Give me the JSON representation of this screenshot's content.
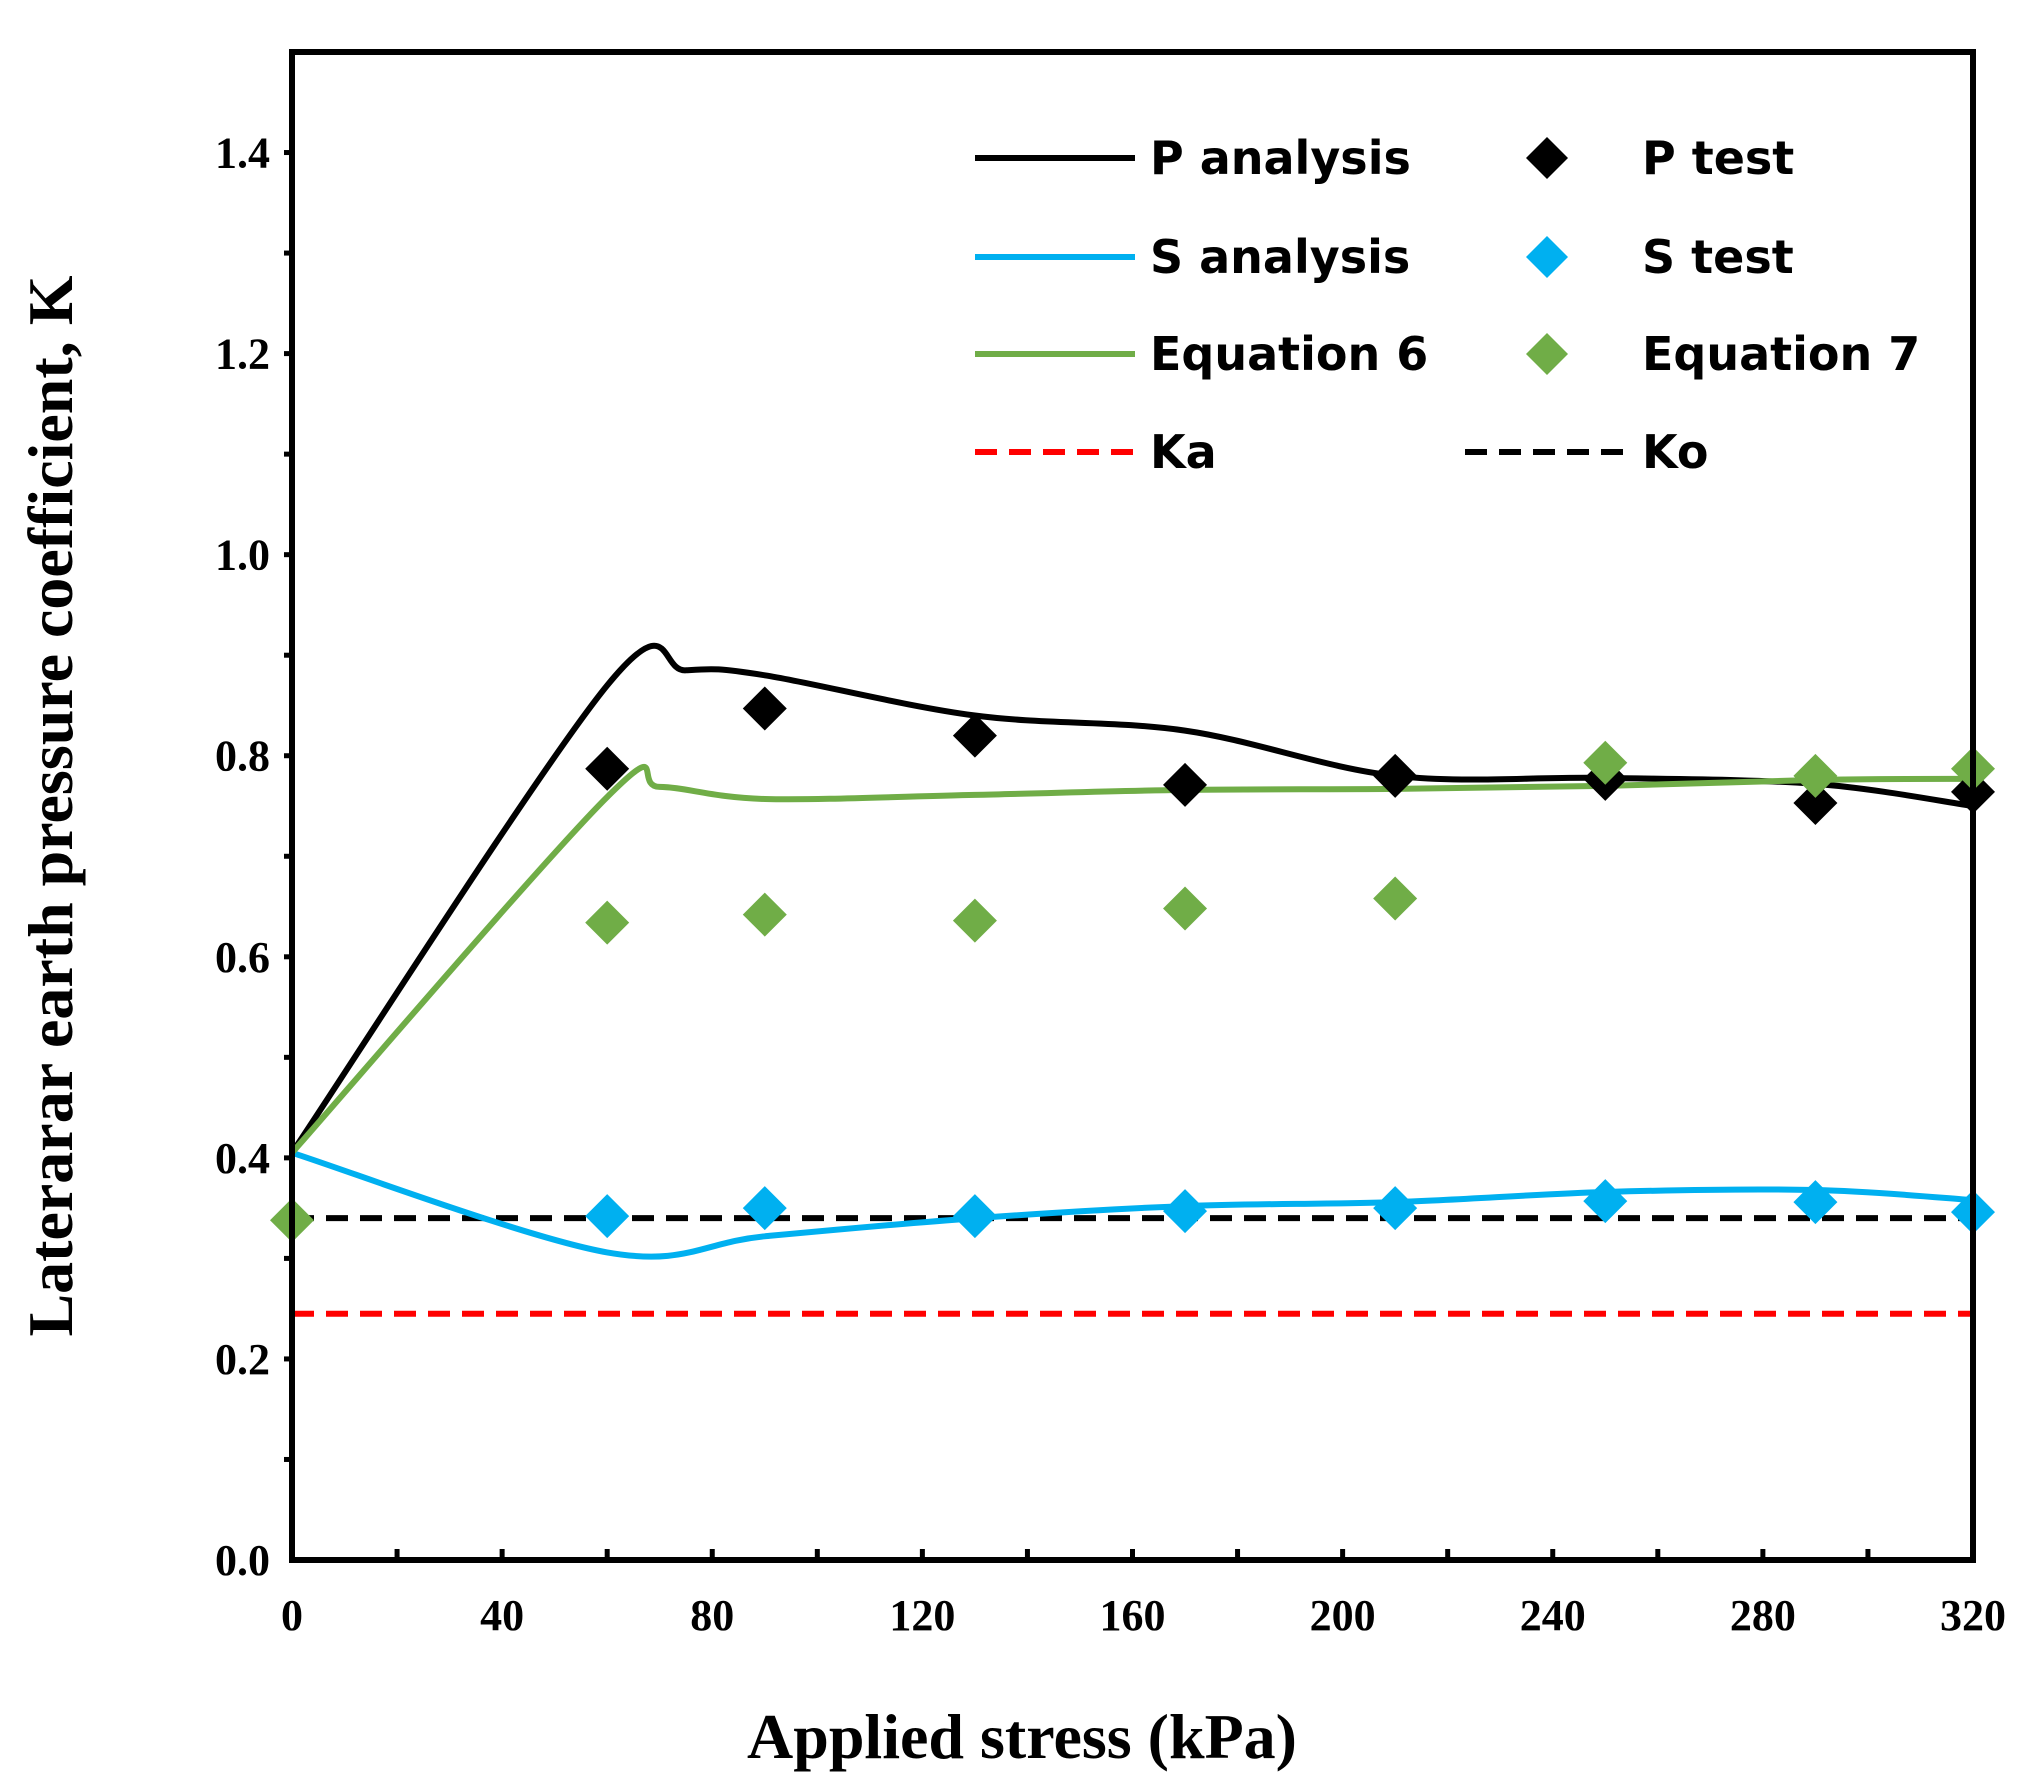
{
  "chart_data": {
    "type": "line",
    "title": "",
    "xlabel": "Applied stress (kPa)",
    "ylabel": "Laterarar earth pressure coefficient, K",
    "xlim": [
      0,
      320
    ],
    "ylim": [
      0.0,
      1.5
    ],
    "x_ticks": [
      0,
      40,
      80,
      120,
      160,
      200,
      240,
      280,
      320
    ],
    "x_tick_labels": [
      "0",
      "40",
      "80",
      "120",
      "160",
      "200",
      "240",
      "280",
      "320"
    ],
    "y_ticks": [
      0.0,
      0.1,
      0.2,
      0.3,
      0.4,
      0.5,
      0.6,
      0.7,
      0.8,
      0.9,
      1.0,
      1.1,
      1.2,
      1.3,
      1.4,
      1.5
    ],
    "y_tick_labels": [
      "0.0",
      "",
      "0.2",
      "",
      "0.4",
      "",
      "0.6",
      "",
      "0.8",
      "",
      "1.0",
      "",
      "1.2",
      "",
      "1.4",
      ""
    ],
    "grid": false,
    "legend_position": "top-right",
    "series": [
      {
        "name": "P analysis",
        "kind": "line",
        "color": "#000000",
        "x": [
          0,
          60,
          75,
          90,
          130,
          170,
          210,
          250,
          290,
          320
        ],
        "y": [
          0.405,
          0.87,
          0.885,
          0.88,
          0.84,
          0.825,
          0.78,
          0.778,
          0.772,
          0.75
        ]
      },
      {
        "name": "P test",
        "kind": "markers",
        "color": "#000000",
        "x": [
          60,
          90,
          130,
          170,
          210,
          250,
          290,
          320
        ],
        "y": [
          0.787,
          0.847,
          0.82,
          0.771,
          0.78,
          0.777,
          0.753,
          0.764
        ]
      },
      {
        "name": "S analysis",
        "kind": "line",
        "color": "#00B0F0",
        "x": [
          0,
          60,
          90,
          130,
          170,
          210,
          250,
          290,
          320
        ],
        "y": [
          0.405,
          0.306,
          0.322,
          0.34,
          0.352,
          0.356,
          0.366,
          0.368,
          0.358
        ]
      },
      {
        "name": "S test",
        "kind": "markers",
        "color": "#00B0F0",
        "x": [
          60,
          90,
          130,
          170,
          210,
          250,
          290,
          320
        ],
        "y": [
          0.342,
          0.35,
          0.342,
          0.347,
          0.35,
          0.357,
          0.356,
          0.346
        ]
      },
      {
        "name": "Equation 6",
        "kind": "line",
        "color": "#70AD47",
        "x": [
          0,
          60,
          70,
          90,
          130,
          170,
          210,
          250,
          290,
          320
        ],
        "y": [
          0.405,
          0.759,
          0.769,
          0.757,
          0.761,
          0.766,
          0.767,
          0.77,
          0.776,
          0.777
        ]
      },
      {
        "name": "Equation 7",
        "kind": "markers",
        "color": "#70AD47",
        "x": [
          0,
          60,
          90,
          130,
          170,
          210,
          250,
          290,
          320
        ],
        "y": [
          0.338,
          0.634,
          0.642,
          0.636,
          0.648,
          0.658,
          0.793,
          0.78,
          0.787
        ]
      },
      {
        "name": "Ka",
        "kind": "dashed",
        "color": "#FF0000",
        "x": [
          0,
          320
        ],
        "y": [
          0.245,
          0.245
        ]
      },
      {
        "name": "Ko",
        "kind": "dashed",
        "color": "#000000",
        "x": [
          0,
          320
        ],
        "y": [
          0.34,
          0.34
        ]
      }
    ]
  }
}
